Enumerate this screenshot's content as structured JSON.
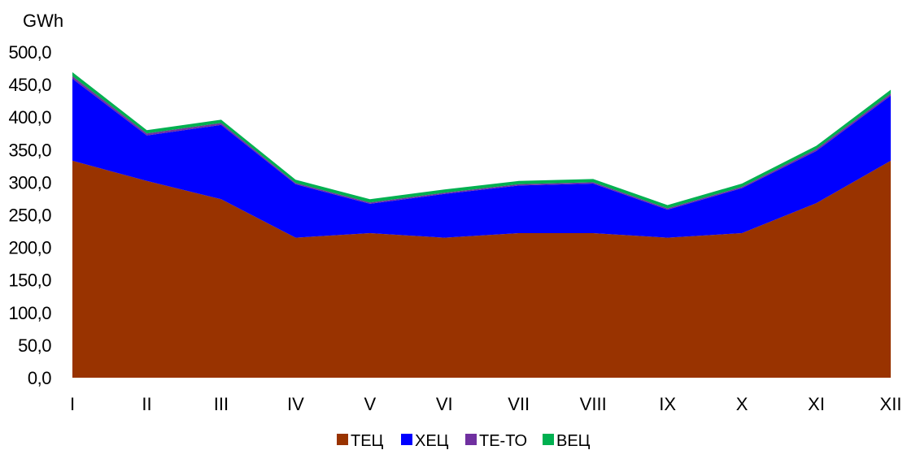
{
  "chart_data": {
    "type": "area",
    "stacked": true,
    "ylabel": "GWh",
    "ylim": [
      0,
      500
    ],
    "yticks": [
      "0,0",
      "50,0",
      "100,0",
      "150,0",
      "200,0",
      "250,0",
      "300,0",
      "350,0",
      "400,0",
      "450,0",
      "500,0"
    ],
    "categories": [
      "I",
      "II",
      "III",
      "IV",
      "V",
      "VI",
      "VII",
      "VIII",
      "IX",
      "X",
      "XI",
      "XII"
    ],
    "series": [
      {
        "name": "ТЕЦ",
        "color": "#993300",
        "values": [
          333,
          302,
          274,
          215,
          222,
          215,
          222,
          222,
          215,
          222,
          268,
          333
        ]
      },
      {
        "name": "ХЕЦ",
        "color": "#0000ff",
        "values": [
          126,
          70,
          114,
          82,
          45,
          67,
          73,
          76,
          43,
          69,
          80,
          100
        ]
      },
      {
        "name": "ТЕ-ТО",
        "color": "#7030a0",
        "values": [
          4,
          3,
          3,
          2,
          2,
          2,
          2,
          2,
          2,
          2,
          3,
          3
        ]
      },
      {
        "name": "ВЕЦ",
        "color": "#00b050",
        "values": [
          6,
          5,
          5,
          5,
          5,
          5,
          5,
          5,
          5,
          5,
          5,
          6
        ]
      }
    ],
    "legend_position": "bottom",
    "grid": false
  }
}
